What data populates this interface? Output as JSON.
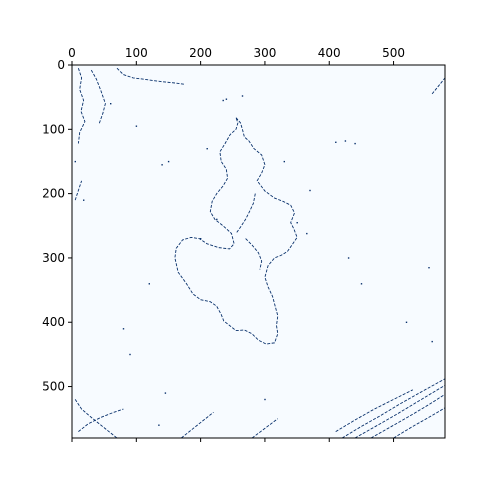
{
  "chart_data": {
    "type": "heatmap",
    "title": "",
    "xlabel": "",
    "ylabel": "",
    "xlim": [
      0,
      580
    ],
    "ylim": [
      580,
      0
    ],
    "x_axis_position": "top",
    "x_ticks": [
      0,
      100,
      200,
      300,
      400,
      500
    ],
    "y_ticks": [
      0,
      100,
      200,
      300,
      400,
      500
    ],
    "x_tick_labels": [
      "0",
      "100",
      "200",
      "300",
      "400",
      "500"
    ],
    "y_tick_labels": [
      "0",
      "100",
      "200",
      "300",
      "400",
      "500"
    ],
    "colormap": "Blues",
    "background_color": "#f7fbff",
    "edge_color": "#08306b",
    "grid": false,
    "legend": "none",
    "value_range": [
      0,
      1
    ],
    "edge_traces": [
      {
        "name": "central-region-outline",
        "points": [
          [
            255,
            82
          ],
          [
            262,
            90
          ],
          [
            265,
            100
          ],
          [
            268,
            112
          ],
          [
            275,
            118
          ],
          [
            283,
            130
          ],
          [
            295,
            140
          ],
          [
            300,
            155
          ],
          [
            295,
            168
          ],
          [
            288,
            180
          ],
          [
            300,
            196
          ],
          [
            315,
            207
          ],
          [
            328,
            212
          ],
          [
            340,
            218
          ],
          [
            346,
            230
          ],
          [
            340,
            245
          ],
          [
            345,
            255
          ],
          [
            350,
            268
          ],
          [
            342,
            280
          ],
          [
            335,
            290
          ],
          [
            325,
            296
          ],
          [
            315,
            300
          ],
          [
            305,
            312
          ],
          [
            300,
            330
          ],
          [
            305,
            345
          ],
          [
            312,
            360
          ],
          [
            316,
            375
          ],
          [
            320,
            390
          ],
          [
            318,
            405
          ],
          [
            320,
            418
          ],
          [
            315,
            432
          ],
          [
            302,
            434
          ],
          [
            290,
            428
          ],
          [
            280,
            418
          ],
          [
            268,
            412
          ],
          [
            255,
            413
          ],
          [
            245,
            405
          ],
          [
            236,
            398
          ],
          [
            232,
            388
          ],
          [
            225,
            375
          ],
          [
            215,
            368
          ],
          [
            200,
            365
          ],
          [
            188,
            356
          ],
          [
            178,
            340
          ],
          [
            165,
            322
          ],
          [
            160,
            300
          ],
          [
            162,
            285
          ],
          [
            172,
            272
          ],
          [
            185,
            268
          ],
          [
            198,
            270
          ],
          [
            210,
            278
          ],
          [
            228,
            284
          ],
          [
            245,
            286
          ],
          [
            252,
            278
          ],
          [
            248,
            262
          ],
          [
            235,
            250
          ],
          [
            222,
            240
          ],
          [
            215,
            228
          ],
          [
            218,
            212
          ],
          [
            225,
            200
          ],
          [
            235,
            188
          ],
          [
            242,
            176
          ],
          [
            240,
            162
          ],
          [
            232,
            150
          ],
          [
            230,
            135
          ],
          [
            238,
            122
          ],
          [
            246,
            108
          ],
          [
            255,
            100
          ],
          [
            258,
            90
          ],
          [
            255,
            82
          ]
        ]
      },
      {
        "name": "inner-branch-a",
        "points": [
          [
            285,
            200
          ],
          [
            282,
            215
          ],
          [
            276,
            228
          ],
          [
            270,
            240
          ],
          [
            262,
            252
          ],
          [
            255,
            262
          ]
        ]
      },
      {
        "name": "inner-branch-b",
        "points": [
          [
            270,
            270
          ],
          [
            280,
            280
          ],
          [
            290,
            292
          ],
          [
            295,
            305
          ],
          [
            292,
            318
          ]
        ]
      },
      {
        "name": "top-left-cluster-1",
        "points": [
          [
            10,
            5
          ],
          [
            15,
            20
          ],
          [
            12,
            38
          ],
          [
            18,
            55
          ],
          [
            14,
            72
          ],
          [
            20,
            88
          ],
          [
            12,
            105
          ],
          [
            10,
            122
          ]
        ]
      },
      {
        "name": "top-left-cluster-2",
        "points": [
          [
            30,
            8
          ],
          [
            38,
            22
          ],
          [
            45,
            40
          ],
          [
            52,
            60
          ],
          [
            48,
            75
          ],
          [
            42,
            92
          ]
        ]
      },
      {
        "name": "top-left-cluster-3",
        "points": [
          [
            70,
            5
          ],
          [
            80,
            15
          ],
          [
            95,
            20
          ],
          [
            110,
            22
          ],
          [
            125,
            24
          ],
          [
            140,
            26
          ],
          [
            160,
            28
          ],
          [
            175,
            30
          ]
        ]
      },
      {
        "name": "bottom-left-cluster",
        "points": [
          [
            5,
            520
          ],
          [
            15,
            535
          ],
          [
            30,
            548
          ],
          [
            45,
            560
          ],
          [
            60,
            572
          ],
          [
            70,
            580
          ]
        ]
      },
      {
        "name": "bottom-left-streak",
        "points": [
          [
            10,
            570
          ],
          [
            25,
            558
          ],
          [
            45,
            548
          ],
          [
            65,
            540
          ],
          [
            80,
            535
          ]
        ]
      },
      {
        "name": "bottom-right-streak-1",
        "points": [
          [
            420,
            580
          ],
          [
            450,
            562
          ],
          [
            480,
            545
          ],
          [
            510,
            527
          ],
          [
            540,
            510
          ],
          [
            580,
            488
          ]
        ]
      },
      {
        "name": "bottom-right-streak-2",
        "points": [
          [
            440,
            580
          ],
          [
            470,
            563
          ],
          [
            500,
            546
          ],
          [
            530,
            528
          ],
          [
            560,
            510
          ],
          [
            580,
            498
          ]
        ]
      },
      {
        "name": "bottom-right-streak-3",
        "points": [
          [
            465,
            580
          ],
          [
            495,
            563
          ],
          [
            525,
            546
          ],
          [
            555,
            528
          ],
          [
            580,
            512
          ]
        ]
      },
      {
        "name": "bottom-right-streak-4",
        "points": [
          [
            500,
            580
          ],
          [
            530,
            562
          ],
          [
            560,
            545
          ],
          [
            580,
            533
          ]
        ]
      },
      {
        "name": "bottom-right-streak-5",
        "points": [
          [
            410,
            570
          ],
          [
            440,
            552
          ],
          [
            470,
            535
          ],
          [
            500,
            520
          ],
          [
            530,
            505
          ]
        ]
      },
      {
        "name": "bottom-center-streak-1",
        "points": [
          [
            170,
            580
          ],
          [
            195,
            560
          ],
          [
            220,
            540
          ]
        ]
      },
      {
        "name": "bottom-center-streak-2",
        "points": [
          [
            280,
            580
          ],
          [
            300,
            565
          ],
          [
            320,
            550
          ]
        ]
      },
      {
        "name": "right-edge-streak",
        "points": [
          [
            560,
            45
          ],
          [
            572,
            30
          ],
          [
            580,
            20
          ]
        ]
      },
      {
        "name": "left-edge-streak",
        "points": [
          [
            5,
            210
          ],
          [
            10,
            195
          ],
          [
            15,
            180
          ]
        ]
      }
    ],
    "scattered_points": [
      [
        235,
        55
      ],
      [
        240,
        53
      ],
      [
        410,
        120
      ],
      [
        425,
        118
      ],
      [
        440,
        122
      ],
      [
        210,
        130
      ],
      [
        150,
        150
      ],
      [
        140,
        155
      ],
      [
        200,
        270
      ],
      [
        225,
        240
      ],
      [
        350,
        245
      ],
      [
        365,
        262
      ],
      [
        430,
        300
      ],
      [
        80,
        410
      ],
      [
        120,
        340
      ],
      [
        90,
        450
      ],
      [
        145,
        510
      ],
      [
        135,
        560
      ],
      [
        450,
        340
      ],
      [
        520,
        400
      ],
      [
        555,
        315
      ],
      [
        560,
        430
      ],
      [
        265,
        48
      ],
      [
        60,
        60
      ],
      [
        100,
        95
      ],
      [
        18,
        210
      ],
      [
        5,
        150
      ],
      [
        330,
        150
      ],
      [
        370,
        195
      ],
      [
        300,
        520
      ]
    ]
  }
}
